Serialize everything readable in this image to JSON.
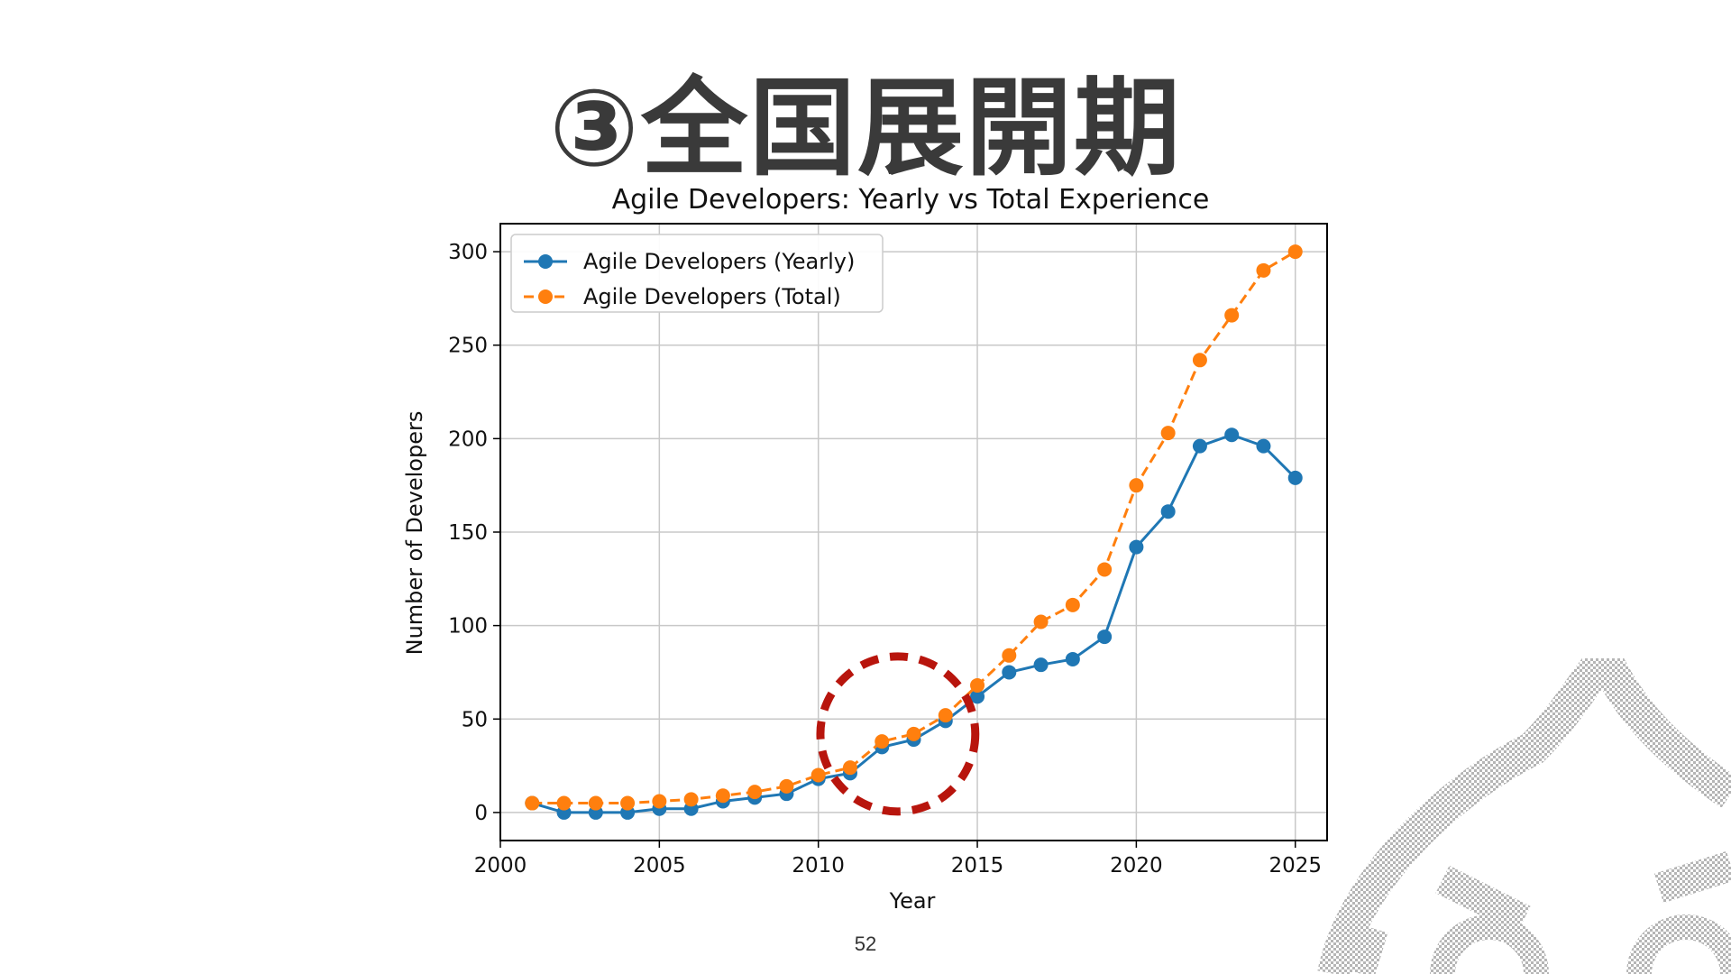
{
  "slide": {
    "title": "③全国展開期",
    "page_number": "52"
  },
  "chart_data": {
    "type": "line",
    "title": "Agile Developers: Yearly vs Total Experience",
    "xlabel": "Year",
    "ylabel": "Number of Developers",
    "xlim": [
      2000,
      2026
    ],
    "ylim": [
      -15,
      315
    ],
    "xticks": [
      2000,
      2005,
      2010,
      2015,
      2020,
      2025
    ],
    "yticks": [
      0,
      50,
      100,
      150,
      200,
      250,
      300
    ],
    "grid": true,
    "legend_position": "top-left",
    "x": [
      2001,
      2002,
      2003,
      2004,
      2005,
      2006,
      2007,
      2008,
      2009,
      2010,
      2011,
      2012,
      2013,
      2014,
      2015,
      2016,
      2017,
      2018,
      2019,
      2020,
      2021,
      2022,
      2023,
      2024,
      2025
    ],
    "series": [
      {
        "name": "Agile Developers (Yearly)",
        "color": "#1f77b4",
        "line_style": "solid",
        "values": [
          5,
          0,
          0,
          0,
          2,
          2,
          6,
          8,
          10,
          18,
          21,
          35,
          39,
          49,
          62,
          75,
          79,
          82,
          94,
          142,
          161,
          196,
          202,
          196,
          179
        ]
      },
      {
        "name": "Agile Developers (Total)",
        "color": "#ff7f0e",
        "line_style": "dashed",
        "values": [
          5,
          5,
          5,
          5,
          6,
          7,
          9,
          11,
          14,
          20,
          24,
          38,
          42,
          52,
          68,
          84,
          102,
          111,
          130,
          175,
          203,
          242,
          266,
          290,
          300
        ]
      }
    ],
    "annotation": {
      "type": "dashed-circle",
      "color": "#b8150d",
      "around_years": [
        2011,
        2014
      ]
    }
  }
}
